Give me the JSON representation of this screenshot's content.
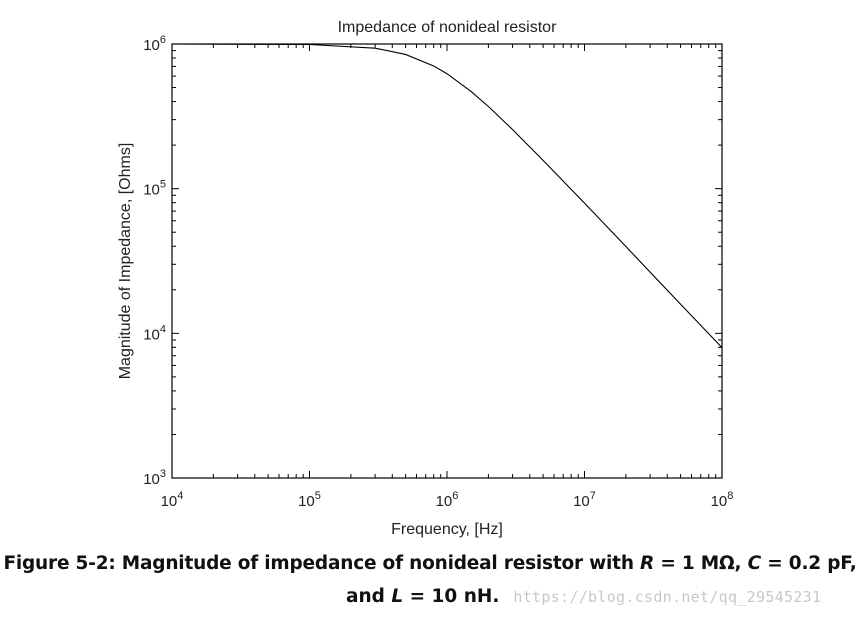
{
  "chart_data": {
    "type": "line",
    "title": "Impedance of nonideal resistor",
    "xlabel": "Frequency, [Hz]",
    "ylabel": "Magnitude of Impedance, [Ohms]",
    "xscale": "log",
    "yscale": "log",
    "xlim": [
      10000,
      100000000
    ],
    "ylim": [
      1000,
      1000000
    ],
    "x_tick_labels": [
      {
        "base": "10",
        "exp": "4"
      },
      {
        "base": "10",
        "exp": "5"
      },
      {
        "base": "10",
        "exp": "6"
      },
      {
        "base": "10",
        "exp": "7"
      },
      {
        "base": "10",
        "exp": "8"
      }
    ],
    "y_tick_labels": [
      {
        "base": "10",
        "exp": "6"
      },
      {
        "base": "10",
        "exp": "5"
      },
      {
        "base": "10",
        "exp": "4"
      },
      {
        "base": "10",
        "exp": "3"
      }
    ],
    "grid": false,
    "series": [
      {
        "color": "#000000",
        "x": [
          10000,
          100000,
          300000,
          500000,
          800000,
          1000000,
          1500000,
          2000000,
          3000000,
          5000000,
          10000000,
          20000000,
          50000000,
          100000000
        ],
        "y": [
          1000000,
          992000,
          936000,
          847000,
          705000,
          623000,
          469000,
          370000,
          256000,
          157000,
          79500,
          39800,
          15900,
          7960
        ]
      }
    ]
  },
  "caption": {
    "line1_prefix": "Figure 5-2: Magnitude of impedance of nonideal resistor with ",
    "R_symbol": "R",
    "R_value": " = 1 MΩ, ",
    "C_symbol": "C",
    "C_value": " = 0.2 pF,",
    "line2_prefix": "and ",
    "L_symbol": "L",
    "L_value": " = 10 nH.",
    "watermark": "https://blog.csdn.net/qq_29545231"
  }
}
